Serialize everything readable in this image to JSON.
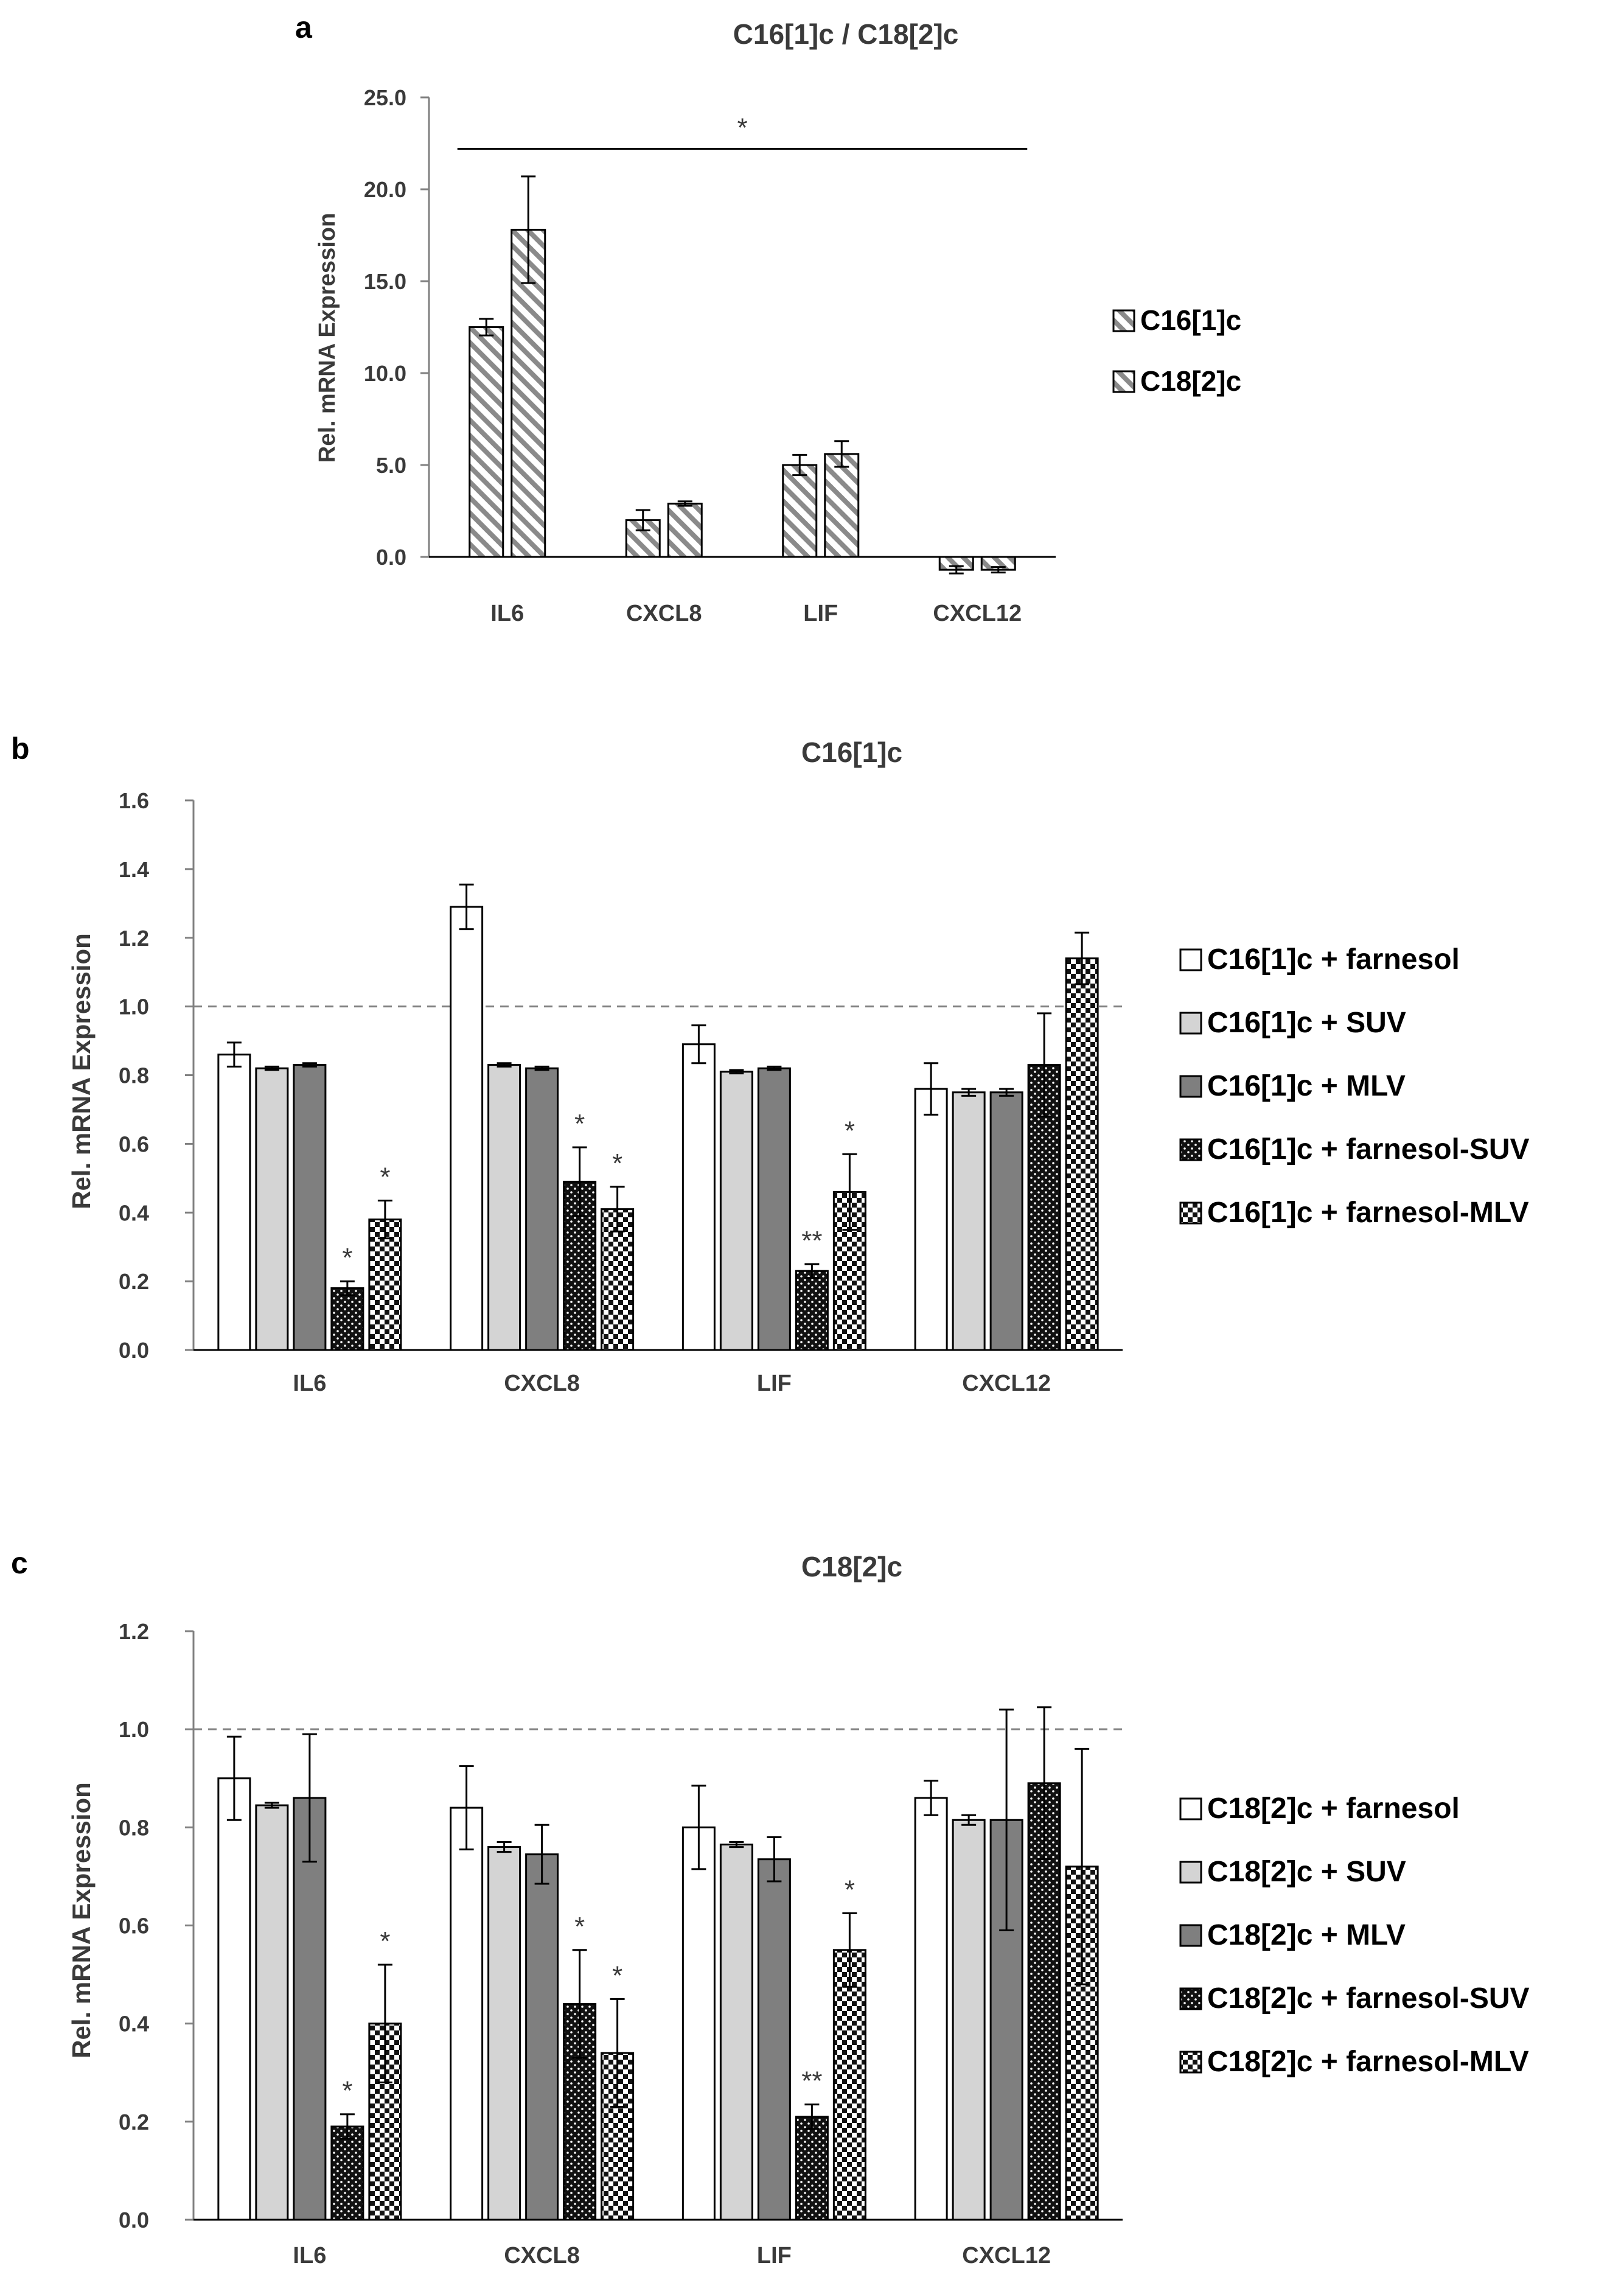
{
  "figure": {
    "colors": {
      "axis": "#000000",
      "text": "#3a3a3a",
      "dashed": "#808080"
    },
    "fills": {
      "hatch-diag": {
        "type": "diag",
        "bg": "#ffffff",
        "fg": "#8a8a8a"
      },
      "hatch-diag2": {
        "type": "diag",
        "bg": "#ffffff",
        "fg": "#8a8a8a"
      },
      "white": {
        "type": "solid",
        "color": "#ffffff"
      },
      "lightgray": {
        "type": "solid",
        "color": "#d4d4d4"
      },
      "darkgray": {
        "type": "solid",
        "color": "#7f7f7f"
      },
      "dark-dots": {
        "type": "dots",
        "bg": "#111111",
        "fg": "#ffffff"
      },
      "checker": {
        "type": "checker",
        "bg": "#ffffff",
        "fg": "#111111"
      }
    }
  },
  "chart_data": [
    {
      "panel_label": "a",
      "type": "bar",
      "title": "C16[1]c / C18[2]c",
      "ylabel": "Rel. mRNA Expression",
      "xlabel": "",
      "ylim": [
        0,
        25
      ],
      "y_ticks": [
        "0.0",
        "5.0",
        "10.0",
        "15.0",
        "20.0",
        "25.0"
      ],
      "categories": [
        "IL6",
        "CXCL8",
        "LIF",
        "CXCL12"
      ],
      "series": [
        {
          "name": "C16[1]c",
          "fill": "hatch-diag",
          "values": [
            12.5,
            2.0,
            5.0,
            -0.7
          ],
          "errors": [
            0.45,
            0.55,
            0.55,
            0.2
          ]
        },
        {
          "name": "C18[2]c",
          "fill": "hatch-diag2",
          "values": [
            17.8,
            2.9,
            5.6,
            -0.7
          ],
          "errors": [
            2.9,
            0.12,
            0.7,
            0.15
          ]
        }
      ],
      "dashed_y": null,
      "annotations": [
        {
          "text": "*",
          "bracket_y": 22.2,
          "from_category": 0,
          "to_category": 3
        }
      ],
      "legend": "right"
    },
    {
      "panel_label": "b",
      "type": "bar",
      "title": "C16[1]c",
      "ylabel": "Rel. mRNA Expression",
      "xlabel": "",
      "ylim": [
        0,
        1.6
      ],
      "y_ticks": [
        "0.0",
        "0.2",
        "0.4",
        "0.6",
        "0.8",
        "1.0",
        "1.2",
        "1.4",
        "1.6"
      ],
      "categories": [
        "IL6",
        "CXCL8",
        "LIF",
        "CXCL12"
      ],
      "series": [
        {
          "name": "C16[1]c + farnesol",
          "fill": "white",
          "values": [
            0.86,
            1.29,
            0.89,
            0.76
          ],
          "errors": [
            0.035,
            0.065,
            0.055,
            0.075
          ],
          "stars": [
            "",
            "",
            "",
            ""
          ]
        },
        {
          "name": "C16[1]c + SUV",
          "fill": "lightgray",
          "values": [
            0.82,
            0.83,
            0.81,
            0.75
          ],
          "errors": [
            0.005,
            0.005,
            0.005,
            0.01
          ],
          "stars": [
            "",
            "",
            "",
            ""
          ]
        },
        {
          "name": "C16[1]c + MLV",
          "fill": "darkgray",
          "values": [
            0.83,
            0.82,
            0.82,
            0.75
          ],
          "errors": [
            0.005,
            0.005,
            0.005,
            0.01
          ],
          "stars": [
            "",
            "",
            "",
            ""
          ]
        },
        {
          "name": "C16[1]c + farnesol-SUV",
          "fill": "dark-dots",
          "values": [
            0.18,
            0.49,
            0.23,
            0.83
          ],
          "errors": [
            0.02,
            0.1,
            0.02,
            0.15
          ],
          "stars": [
            "*",
            "*",
            "**",
            ""
          ]
        },
        {
          "name": "C16[1]c + farnesol-MLV",
          "fill": "checker",
          "values": [
            0.38,
            0.41,
            0.46,
            1.14
          ],
          "errors": [
            0.055,
            0.065,
            0.11,
            0.075
          ],
          "stars": [
            "*",
            "*",
            "*",
            ""
          ]
        }
      ],
      "dashed_y": 1.0,
      "legend": "right"
    },
    {
      "panel_label": "c",
      "type": "bar",
      "title": "C18[2]c",
      "ylabel": "Rel. mRNA Expression",
      "xlabel": "",
      "ylim": [
        0,
        1.2
      ],
      "y_ticks": [
        "0.0",
        "0.2",
        "0.4",
        "0.6",
        "0.8",
        "1.0",
        "1.2"
      ],
      "categories": [
        "IL6",
        "CXCL8",
        "LIF",
        "CXCL12"
      ],
      "series": [
        {
          "name": "C18[2]c + farnesol",
          "fill": "white",
          "values": [
            0.9,
            0.84,
            0.8,
            0.86
          ],
          "errors": [
            0.085,
            0.085,
            0.085,
            0.035
          ],
          "stars": [
            "",
            "",
            "",
            ""
          ]
        },
        {
          "name": "C18[2]c + SUV",
          "fill": "lightgray",
          "values": [
            0.845,
            0.76,
            0.765,
            0.815
          ],
          "errors": [
            0.005,
            0.01,
            0.005,
            0.01
          ],
          "stars": [
            "",
            "",
            "",
            ""
          ]
        },
        {
          "name": "C18[2]c + MLV",
          "fill": "darkgray",
          "values": [
            0.86,
            0.745,
            0.735,
            0.815
          ],
          "errors": [
            0.13,
            0.06,
            0.045,
            0.225
          ],
          "stars": [
            "",
            "",
            "",
            ""
          ]
        },
        {
          "name": "C18[2]c + farnesol-SUV",
          "fill": "dark-dots",
          "values": [
            0.19,
            0.44,
            0.21,
            0.89
          ],
          "errors": [
            0.025,
            0.11,
            0.025,
            0.155
          ],
          "stars": [
            "*",
            "*",
            "**",
            ""
          ]
        },
        {
          "name": "C18[2]c + farnesol-MLV",
          "fill": "checker",
          "values": [
            0.4,
            0.34,
            0.55,
            0.72
          ],
          "errors": [
            0.12,
            0.11,
            0.075,
            0.24
          ],
          "stars": [
            "*",
            "*",
            "*",
            ""
          ]
        }
      ],
      "dashed_y": 1.0,
      "legend": "right"
    }
  ]
}
